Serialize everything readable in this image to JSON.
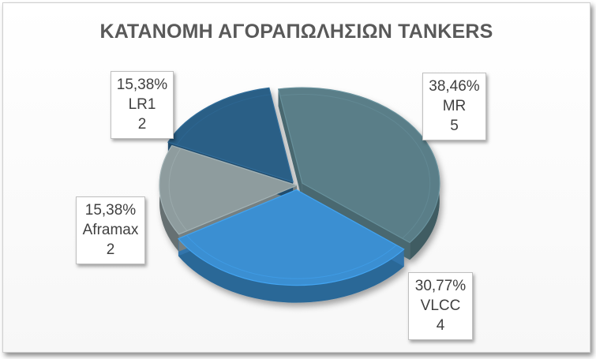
{
  "chart_data": {
    "type": "pie",
    "title": "ΚΑΤΑΝΟΜΗ ΑΓΟΡΑΠΩΛΗΣΙΩΝ TANKERS",
    "slices": [
      {
        "name": "MR",
        "value": 5,
        "percent": "38,46%",
        "color": "#5a7e88"
      },
      {
        "name": "VLCC",
        "value": 4,
        "percent": "30,77%",
        "color": "#3a8fd2"
      },
      {
        "name": "Aframax",
        "value": 2,
        "percent": "15,38%",
        "color": "#8e9c9e"
      },
      {
        "name": "LR1",
        "value": 2,
        "percent": "15,38%",
        "color": "#2a5f86"
      }
    ]
  }
}
